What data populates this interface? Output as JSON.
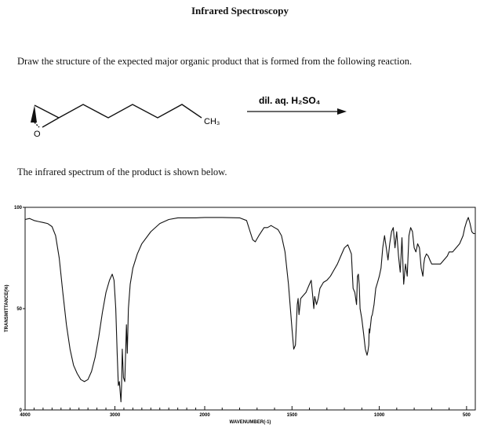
{
  "page": {
    "title": "Infrared Spectroscopy",
    "instruction": "Draw the structure of the expected major organic product that is formed from the following reaction.",
    "spectrum_intro": "The infrared spectrum of the product is shown below."
  },
  "reaction": {
    "substituent_label": "CH3",
    "oxygen_label": "O",
    "reagent_label": "dil. aq. H2SO4"
  },
  "chart_data": {
    "type": "line",
    "title": "",
    "xlabel": "WAVENUMBER(-1)",
    "ylabel": "TRANSMITTANCE(%)",
    "xlim": [
      4000,
      450
    ],
    "ylim": [
      0,
      100
    ],
    "x_ticks": [
      4000,
      3000,
      2000,
      1500,
      1000,
      500
    ],
    "x_tick_labels": [
      "4000",
      "3000",
      "2000",
      "1500",
      "1000",
      "500"
    ],
    "y_ticks": [
      0,
      50,
      100
    ],
    "y_tick_labels": [
      "0",
      "50",
      "100"
    ],
    "grid": false,
    "line_color": "#111111",
    "series": [
      {
        "name": "",
        "x": [
          4000,
          3950,
          3900,
          3850,
          3800,
          3750,
          3700,
          3660,
          3620,
          3580,
          3540,
          3500,
          3460,
          3420,
          3380,
          3340,
          3300,
          3260,
          3220,
          3180,
          3140,
          3100,
          3060,
          3030,
          3010,
          2990,
          2975,
          2962,
          2950,
          2940,
          2933,
          2926,
          2918,
          2905,
          2890,
          2872,
          2862,
          2850,
          2830,
          2800,
          2750,
          2700,
          2600,
          2500,
          2400,
          2300,
          2200,
          2100,
          2000,
          1900,
          1800,
          1760,
          1740,
          1725,
          1710,
          1690,
          1660,
          1640,
          1620,
          1600,
          1580,
          1560,
          1540,
          1520,
          1500,
          1490,
          1480,
          1470,
          1465,
          1460,
          1450,
          1440,
          1430,
          1420,
          1410,
          1400,
          1390,
          1380,
          1375,
          1370,
          1360,
          1350,
          1340,
          1320,
          1300,
          1280,
          1260,
          1240,
          1220,
          1200,
          1180,
          1160,
          1150,
          1140,
          1130,
          1125,
          1120,
          1115,
          1110,
          1100,
          1090,
          1080,
          1070,
          1065,
          1060,
          1058,
          1055,
          1050,
          1045,
          1040,
          1030,
          1020,
          1010,
          1000,
          990,
          980,
          970,
          960,
          950,
          940,
          930,
          920,
          910,
          900,
          890,
          880,
          870,
          860,
          850,
          840,
          830,
          820,
          810,
          800,
          790,
          780,
          770,
          760,
          750,
          745,
          740,
          730,
          720,
          710,
          700,
          690,
          680,
          670,
          660,
          650,
          640,
          630,
          620,
          610,
          600,
          580,
          560,
          540,
          520,
          510,
          500,
          490,
          480,
          470,
          460,
          450
        ],
        "y": [
          94,
          94.5,
          93.5,
          93,
          92.5,
          92,
          90.5,
          86,
          75,
          58,
          42,
          30,
          22,
          18,
          15,
          14,
          15,
          19,
          26,
          36,
          48,
          58,
          64,
          67,
          64,
          50,
          28,
          12,
          14,
          8,
          4,
          12,
          30,
          16,
          14,
          42,
          28,
          50,
          62,
          70,
          77,
          82,
          88,
          92,
          94,
          94.8,
          94.8,
          94.8,
          95,
          95,
          94.8,
          93.5,
          88,
          84,
          83,
          86,
          90,
          90,
          91,
          90,
          89,
          86,
          78,
          62,
          40,
          30,
          32,
          52,
          55,
          47,
          55,
          56,
          57,
          58,
          60,
          62,
          64,
          55,
          50,
          56,
          52,
          55,
          60,
          63,
          64,
          66,
          69,
          72,
          76,
          80,
          81.5,
          77,
          60,
          58,
          52,
          66,
          67,
          62,
          50,
          45,
          38,
          30,
          27,
          29,
          32,
          40,
          38,
          42,
          46,
          47,
          52,
          60,
          63,
          66,
          70,
          80,
          86,
          80,
          74,
          82,
          88,
          90,
          80,
          88,
          76,
          68,
          85,
          62,
          72,
          66,
          86,
          90,
          88,
          80,
          78,
          82,
          80,
          70,
          66,
          72,
          75,
          77,
          76,
          74,
          72,
          72,
          72,
          72,
          72,
          72,
          73,
          74,
          75,
          76,
          78,
          78,
          80,
          82,
          86,
          90,
          93,
          95,
          92,
          88,
          87,
          87
        ]
      }
    ]
  }
}
